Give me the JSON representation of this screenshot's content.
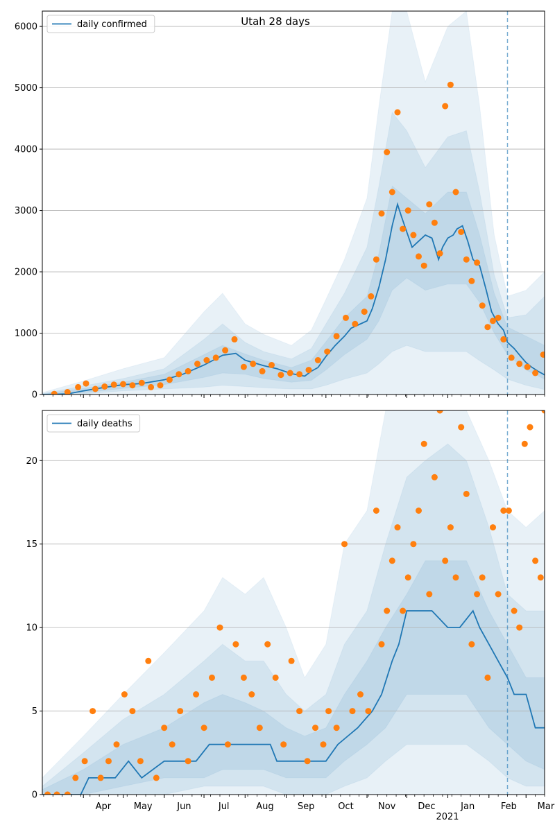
{
  "chart_data": [
    {
      "type": "line",
      "title": "Utah 28 days",
      "legend": {
        "label": "daily confirmed",
        "placement": "top-left"
      },
      "xlim": [
        "2020-03-01",
        "2021-03-15"
      ],
      "ylim": [
        0,
        6250
      ],
      "yticks": [
        0,
        1000,
        2000,
        3000,
        4000,
        5000,
        6000
      ],
      "grid": "horizontal",
      "colors": {
        "line": "#1f77b4",
        "points": "#ff7f0e",
        "band": "#1f77b4"
      },
      "forecast_start": "2021-02-15",
      "series_line": {
        "name": "daily confirmed",
        "x": [
          "2020-03-01",
          "2020-03-20",
          "2020-04-01",
          "2020-04-15",
          "2020-05-01",
          "2020-05-15",
          "2020-06-01",
          "2020-06-15",
          "2020-07-01",
          "2020-07-08",
          "2020-07-15",
          "2020-07-25",
          "2020-08-01",
          "2020-08-15",
          "2020-08-25",
          "2020-09-05",
          "2020-09-15",
          "2020-09-20",
          "2020-09-25",
          "2020-10-01",
          "2020-10-08",
          "2020-10-15",
          "2020-10-20",
          "2020-10-25",
          "2020-11-01",
          "2020-11-05",
          "2020-11-10",
          "2020-11-15",
          "2020-11-20",
          "2020-11-24",
          "2020-11-27",
          "2020-12-01",
          "2020-12-05",
          "2020-12-10",
          "2020-12-15",
          "2020-12-20",
          "2020-12-25",
          "2020-12-28",
          "2021-01-01",
          "2021-01-05",
          "2021-01-08",
          "2021-01-12",
          "2021-01-16",
          "2021-01-20",
          "2021-01-25",
          "2021-01-30",
          "2021-02-03",
          "2021-02-08",
          "2021-02-12",
          "2021-02-15",
          "2021-02-20",
          "2021-02-25",
          "2021-03-01",
          "2021-03-05",
          "2021-03-10",
          "2021-03-15"
        ],
        "y": [
          0,
          10,
          60,
          110,
          160,
          180,
          240,
          330,
          480,
          560,
          640,
          670,
          560,
          470,
          420,
          340,
          300,
          380,
          440,
          620,
          800,
          950,
          1080,
          1130,
          1200,
          1400,
          1750,
          2200,
          2750,
          3100,
          2900,
          2650,
          2400,
          2500,
          2600,
          2550,
          2200,
          2400,
          2550,
          2600,
          2700,
          2750,
          2500,
          2200,
          2100,
          1700,
          1350,
          1150,
          1050,
          850,
          750,
          620,
          520,
          450,
          380,
          320
        ]
      },
      "bands": [
        {
          "name": "outer",
          "x": [
            "2020-03-01",
            "2020-04-01",
            "2020-05-01",
            "2020-06-01",
            "2020-07-01",
            "2020-07-15",
            "2020-08-01",
            "2020-08-15",
            "2020-09-05",
            "2020-09-20",
            "2020-10-01",
            "2020-10-15",
            "2020-11-01",
            "2020-11-10",
            "2020-11-20",
            "2020-12-01",
            "2020-12-15",
            "2021-01-01",
            "2021-01-15",
            "2021-01-25",
            "2021-02-05",
            "2021-02-15",
            "2021-03-01",
            "2021-03-15"
          ],
          "upper": [
            30,
            220,
            420,
            600,
            1350,
            1650,
            1150,
            980,
            800,
            1050,
            1550,
            2200,
            3200,
            4700,
            6300,
            6300,
            5100,
            6000,
            6300,
            4700,
            2600,
            1600,
            1700,
            2000
          ],
          "lower": [
            0,
            0,
            0,
            0,
            0,
            0,
            0,
            0,
            0,
            0,
            0,
            0,
            0,
            0,
            0,
            0,
            0,
            0,
            0,
            0,
            0,
            0,
            0,
            0
          ]
        },
        {
          "name": "middle",
          "x": [
            "2020-03-01",
            "2020-04-01",
            "2020-05-01",
            "2020-06-01",
            "2020-07-01",
            "2020-07-15",
            "2020-08-01",
            "2020-08-15",
            "2020-09-05",
            "2020-09-20",
            "2020-10-01",
            "2020-10-15",
            "2020-11-01",
            "2020-11-10",
            "2020-11-20",
            "2020-12-01",
            "2020-12-15",
            "2021-01-01",
            "2021-01-15",
            "2021-01-25",
            "2021-02-05",
            "2021-02-15",
            "2021-03-01",
            "2021-03-15"
          ],
          "upper": [
            15,
            140,
            260,
            420,
            900,
            1150,
            850,
            700,
            580,
            750,
            1150,
            1650,
            2400,
            3400,
            4600,
            4300,
            3700,
            4200,
            4300,
            3300,
            1950,
            1250,
            1300,
            1600
          ],
          "lower": [
            0,
            10,
            60,
            90,
            120,
            150,
            130,
            110,
            90,
            90,
            150,
            250,
            350,
            500,
            700,
            800,
            700,
            700,
            700,
            550,
            400,
            250,
            150,
            80
          ]
        },
        {
          "name": "inner",
          "x": [
            "2020-03-01",
            "2020-04-01",
            "2020-05-01",
            "2020-06-01",
            "2020-07-01",
            "2020-07-15",
            "2020-08-01",
            "2020-08-15",
            "2020-09-05",
            "2020-09-20",
            "2020-10-01",
            "2020-10-15",
            "2020-11-01",
            "2020-11-10",
            "2020-11-20",
            "2020-12-01",
            "2020-12-15",
            "2021-01-01",
            "2021-01-15",
            "2021-01-25",
            "2021-02-05",
            "2021-02-15",
            "2021-03-01",
            "2021-03-15"
          ],
          "upper": [
            8,
            100,
            200,
            330,
            650,
            800,
            660,
            560,
            440,
            560,
            860,
            1250,
            1600,
            2300,
            3400,
            3200,
            2950,
            3300,
            3300,
            2600,
            1650,
            1100,
            950,
            800
          ],
          "lower": [
            0,
            30,
            100,
            160,
            280,
            350,
            330,
            260,
            200,
            230,
            400,
            650,
            900,
            1200,
            1700,
            1900,
            1700,
            1800,
            1800,
            1500,
            1000,
            650,
            400,
            250
          ]
        }
      ],
      "series_points": {
        "name": "observed",
        "x": [
          "2020-03-10",
          "2020-03-20",
          "2020-03-28",
          "2020-04-03",
          "2020-04-10",
          "2020-04-17",
          "2020-04-24",
          "2020-05-01",
          "2020-05-08",
          "2020-05-15",
          "2020-05-22",
          "2020-05-29",
          "2020-06-05",
          "2020-06-12",
          "2020-06-19",
          "2020-06-26",
          "2020-07-03",
          "2020-07-10",
          "2020-07-17",
          "2020-07-24",
          "2020-07-31",
          "2020-08-07",
          "2020-08-14",
          "2020-08-21",
          "2020-08-28",
          "2020-09-04",
          "2020-09-11",
          "2020-09-18",
          "2020-09-25",
          "2020-10-02",
          "2020-10-09",
          "2020-10-16",
          "2020-10-23",
          "2020-10-30",
          "2020-11-04",
          "2020-11-08",
          "2020-11-12",
          "2020-11-16",
          "2020-11-20",
          "2020-11-24",
          "2020-11-28",
          "2020-12-02",
          "2020-12-06",
          "2020-12-10",
          "2020-12-14",
          "2020-12-18",
          "2020-12-22",
          "2020-12-26",
          "2020-12-30",
          "2021-01-03",
          "2021-01-07",
          "2021-01-11",
          "2021-01-15",
          "2021-01-19",
          "2021-01-23",
          "2021-01-27",
          "2021-01-31",
          "2021-02-04",
          "2021-02-08",
          "2021-02-12",
          "2021-02-18",
          "2021-02-24",
          "2021-03-02",
          "2021-03-08",
          "2021-03-14"
        ],
        "y": [
          10,
          40,
          120,
          180,
          90,
          130,
          160,
          170,
          150,
          190,
          120,
          150,
          240,
          330,
          380,
          500,
          560,
          600,
          720,
          900,
          450,
          500,
          380,
          480,
          320,
          350,
          330,
          400,
          560,
          700,
          950,
          1250,
          1150,
          1350,
          1600,
          2200,
          2950,
          3950,
          3300,
          4600,
          2700,
          3000,
          2600,
          2250,
          2100,
          3100,
          2800,
          2300,
          4700,
          5050,
          3300,
          2650,
          2200,
          1850,
          2150,
          1450,
          1100,
          1200,
          1250,
          900,
          600,
          500,
          450,
          350,
          650
        ]
      }
    },
    {
      "type": "line",
      "title": "",
      "legend": {
        "label": "daily deaths",
        "placement": "top-left"
      },
      "xlim": [
        "2020-03-01",
        "2021-03-15"
      ],
      "ylim": [
        0,
        23
      ],
      "yticks": [
        0,
        5,
        10,
        15,
        20
      ],
      "xticks": [
        "Apr",
        "May",
        "Jun",
        "Jul",
        "Aug",
        "Sep",
        "Oct",
        "Nov",
        "Dec",
        "Jan",
        "Feb",
        "Mar"
      ],
      "xtick_dates": [
        "2020-04-01",
        "2020-05-01",
        "2020-06-01",
        "2020-07-01",
        "2020-08-01",
        "2020-09-01",
        "2020-10-01",
        "2020-11-01",
        "2020-12-01",
        "2021-01-01",
        "2021-02-01",
        "2021-03-01"
      ],
      "year_label": "2021",
      "grid": "horizontal",
      "colors": {
        "line": "#1f77b4",
        "points": "#ff7f0e",
        "band": "#1f77b4"
      },
      "forecast_start": "2021-02-15",
      "series_line": {
        "name": "daily deaths",
        "x": [
          "2020-03-01",
          "2020-03-30",
          "2020-04-05",
          "2020-04-25",
          "2020-05-05",
          "2020-05-15",
          "2020-06-01",
          "2020-06-25",
          "2020-07-05",
          "2020-07-15",
          "2020-08-01",
          "2020-08-20",
          "2020-08-25",
          "2020-09-15",
          "2020-10-01",
          "2020-10-10",
          "2020-10-25",
          "2020-11-05",
          "2020-11-12",
          "2020-11-20",
          "2020-11-25",
          "2020-12-01",
          "2020-12-10",
          "2020-12-20",
          "2021-01-01",
          "2021-01-10",
          "2021-01-20",
          "2021-01-25",
          "2021-02-01",
          "2021-02-08",
          "2021-02-15",
          "2021-02-20",
          "2021-03-01",
          "2021-03-08",
          "2021-03-15"
        ],
        "y": [
          0,
          0,
          1,
          1,
          2,
          1,
          2,
          2,
          3,
          3,
          3,
          3,
          2,
          2,
          2,
          3,
          4,
          5,
          6,
          8,
          9,
          11,
          11,
          11,
          10,
          10,
          11,
          10,
          9,
          8,
          7,
          6,
          6,
          4,
          4
        ]
      },
      "bands": [
        {
          "name": "outer",
          "x": [
            "2020-03-01",
            "2020-04-01",
            "2020-05-01",
            "2020-06-01",
            "2020-07-01",
            "2020-07-15",
            "2020-08-01",
            "2020-08-15",
            "2020-09-01",
            "2020-09-15",
            "2020-10-01",
            "2020-10-15",
            "2020-11-01",
            "2020-11-15",
            "2020-12-01",
            "2020-12-15",
            "2021-01-01",
            "2021-01-15",
            "2021-02-01",
            "2021-02-15",
            "2021-03-01",
            "2021-03-15"
          ],
          "upper": [
            1,
            3.5,
            6,
            8.5,
            11,
            13,
            12,
            13,
            10,
            7,
            9,
            15,
            17,
            23,
            23,
            23,
            23,
            23,
            20,
            17,
            16,
            17
          ],
          "lower": [
            0,
            0,
            0,
            0,
            0,
            0,
            0,
            0,
            0,
            0,
            0,
            0,
            0,
            0,
            0,
            0,
            0,
            0,
            0,
            0,
            0,
            0
          ]
        },
        {
          "name": "middle",
          "x": [
            "2020-03-01",
            "2020-04-01",
            "2020-05-01",
            "2020-06-01",
            "2020-07-01",
            "2020-07-15",
            "2020-08-01",
            "2020-08-15",
            "2020-09-01",
            "2020-09-15",
            "2020-10-01",
            "2020-10-15",
            "2020-11-01",
            "2020-11-15",
            "2020-12-01",
            "2020-12-15",
            "2021-01-01",
            "2021-01-15",
            "2021-02-01",
            "2021-02-15",
            "2021-03-01",
            "2021-03-15"
          ],
          "upper": [
            0.5,
            2.5,
            4.5,
            6,
            8,
            9,
            8,
            8,
            6,
            5,
            6,
            9,
            11,
            15,
            19,
            20,
            21,
            20,
            16,
            12,
            11,
            11
          ],
          "lower": [
            0,
            0,
            0,
            0,
            0.5,
            0.5,
            0.5,
            0.5,
            0,
            0,
            0,
            0.5,
            1,
            2,
            3,
            3,
            3,
            3,
            2,
            1,
            0.5,
            0.5
          ]
        },
        {
          "name": "inner",
          "x": [
            "2020-03-01",
            "2020-04-01",
            "2020-05-01",
            "2020-06-01",
            "2020-07-01",
            "2020-07-15",
            "2020-08-01",
            "2020-08-15",
            "2020-09-01",
            "2020-09-15",
            "2020-10-01",
            "2020-10-15",
            "2020-11-01",
            "2020-11-15",
            "2020-12-01",
            "2020-12-15",
            "2021-01-01",
            "2021-01-15",
            "2021-02-01",
            "2021-02-15",
            "2021-03-01",
            "2021-03-15"
          ],
          "upper": [
            0.3,
            1.5,
            3,
            4,
            5.5,
            6,
            5.5,
            5,
            4,
            3.5,
            4,
            6,
            8,
            10,
            12,
            14,
            14,
            14,
            11,
            9,
            7,
            7
          ],
          "lower": [
            0,
            0,
            0.5,
            1,
            1,
            1.5,
            1.5,
            1.5,
            1,
            1,
            1,
            2,
            3,
            4,
            6,
            6,
            6,
            6,
            4,
            3,
            2,
            1.5
          ]
        }
      ],
      "series_points": {
        "name": "observed",
        "x": [
          "2020-03-05",
          "2020-03-12",
          "2020-03-20",
          "2020-03-26",
          "2020-04-02",
          "2020-04-08",
          "2020-04-14",
          "2020-04-20",
          "2020-04-26",
          "2020-05-02",
          "2020-05-08",
          "2020-05-14",
          "2020-05-20",
          "2020-05-26",
          "2020-06-01",
          "2020-06-07",
          "2020-06-13",
          "2020-06-19",
          "2020-06-25",
          "2020-07-01",
          "2020-07-07",
          "2020-07-13",
          "2020-07-19",
          "2020-07-25",
          "2020-07-31",
          "2020-08-06",
          "2020-08-12",
          "2020-08-18",
          "2020-08-24",
          "2020-08-30",
          "2020-09-05",
          "2020-09-11",
          "2020-09-17",
          "2020-09-23",
          "2020-09-29",
          "2020-10-03",
          "2020-10-09",
          "2020-10-15",
          "2020-10-21",
          "2020-10-27",
          "2020-11-02",
          "2020-11-08",
          "2020-11-12",
          "2020-11-16",
          "2020-11-20",
          "2020-11-24",
          "2020-11-28",
          "2020-12-02",
          "2020-12-06",
          "2020-12-10",
          "2020-12-14",
          "2020-12-18",
          "2020-12-22",
          "2020-12-26",
          "2020-12-30",
          "2021-01-03",
          "2021-01-07",
          "2021-01-11",
          "2021-01-15",
          "2021-01-19",
          "2021-01-23",
          "2021-01-27",
          "2021-01-31",
          "2021-02-04",
          "2021-02-08",
          "2021-02-12",
          "2021-02-16",
          "2021-02-20",
          "2021-02-24",
          "2021-02-28",
          "2021-03-04",
          "2021-03-08",
          "2021-03-12",
          "2021-03-15"
        ],
        "y": [
          0,
          0,
          0,
          1,
          2,
          5,
          1,
          2,
          3,
          6,
          5,
          2,
          8,
          1,
          4,
          3,
          5,
          2,
          6,
          4,
          7,
          10,
          3,
          9,
          7,
          6,
          4,
          9,
          7,
          3,
          8,
          5,
          2,
          4,
          3,
          5,
          4,
          15,
          5,
          6,
          5,
          17,
          9,
          11,
          14,
          16,
          11,
          13,
          15,
          17,
          21,
          12,
          19,
          23,
          14,
          16,
          13,
          22,
          18,
          9,
          12,
          13,
          7,
          16,
          12,
          17,
          17,
          11,
          10,
          21,
          22,
          14,
          13,
          23
        ]
      }
    }
  ]
}
